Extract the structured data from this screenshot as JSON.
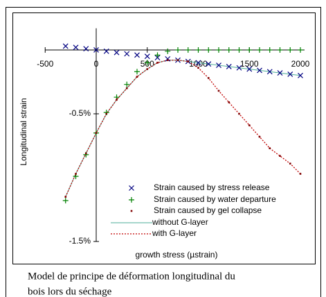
{
  "chart_data": {
    "type": "scatter",
    "xlabel": "growth stress (µstrain)",
    "ylabel": "Longitudinal strain",
    "xlim": [
      -500,
      2000
    ],
    "xticks": [
      -500,
      0,
      500,
      1000,
      1500,
      2000
    ],
    "ylim": [
      -1.5,
      0.17
    ],
    "yticks": [
      {
        "value": -0.5,
        "label": "-0.5%"
      },
      {
        "value": -1.5,
        "label": "-1.5%"
      }
    ],
    "series": [
      {
        "name": "Strain caused by stress release",
        "marker": "x",
        "color": "#000080",
        "x": [
          -300,
          -200,
          -100,
          0,
          100,
          200,
          300,
          400,
          500,
          600,
          700,
          800,
          900,
          1000,
          1100,
          1200,
          1300,
          1400,
          1500,
          1600,
          1700,
          1800,
          1900,
          2000
        ],
        "values": [
          0.03,
          0.02,
          0.01,
          0,
          -0.01,
          -0.02,
          -0.03,
          -0.04,
          -0.05,
          -0.06,
          -0.07,
          -0.08,
          -0.09,
          -0.1,
          -0.11,
          -0.12,
          -0.13,
          -0.14,
          -0.15,
          -0.16,
          -0.17,
          -0.18,
          -0.19,
          -0.2
        ]
      },
      {
        "name": "Strain caused by water departure",
        "marker": "plus",
        "color": "#008000",
        "x": [
          -300,
          -200,
          -100,
          0,
          100,
          200,
          300,
          400,
          500,
          600,
          700,
          800,
          900,
          1000,
          1100,
          1200,
          1300,
          1400,
          1500,
          1600,
          1700,
          1800,
          1900,
          2000
        ],
        "values": [
          -1.18,
          -0.99,
          -0.82,
          -0.65,
          -0.49,
          -0.37,
          -0.27,
          -0.17,
          -0.1,
          -0.04,
          -0.01,
          0,
          0,
          0,
          0,
          0,
          0,
          0,
          0,
          0,
          0,
          0,
          0,
          0
        ]
      },
      {
        "name": "Strain caused by gel collapse",
        "marker": "square",
        "color": "#800000",
        "x": [
          -300,
          -200,
          -100,
          0,
          100,
          200,
          300,
          400,
          500,
          600,
          700,
          800,
          900,
          1000,
          1100,
          1200,
          1300,
          1400,
          1500,
          1600,
          1700,
          1800,
          1900,
          2000
        ],
        "values": [
          -1.15,
          -0.97,
          -0.81,
          -0.65,
          -0.5,
          -0.39,
          -0.3,
          -0.21,
          -0.15,
          -0.1,
          -0.08,
          -0.08,
          -0.09,
          -0.14,
          -0.22,
          -0.32,
          -0.41,
          -0.5,
          -0.59,
          -0.68,
          -0.77,
          -0.83,
          -0.89,
          -0.97
        ]
      },
      {
        "name": "without G-layer",
        "marker": "line",
        "color": "#4dad9a",
        "x": [
          -300,
          -200,
          -100,
          0,
          100,
          200,
          300,
          400,
          500,
          600,
          700,
          800,
          900,
          1000,
          1100,
          1200,
          1300,
          1400,
          1500,
          1600,
          1700,
          1800,
          1900,
          2000
        ],
        "values": [
          -1.15,
          -0.97,
          -0.81,
          -0.65,
          -0.5,
          -0.39,
          -0.3,
          -0.21,
          -0.15,
          -0.1,
          -0.08,
          -0.08,
          -0.09,
          -0.1,
          -0.11,
          -0.12,
          -0.13,
          -0.14,
          -0.15,
          -0.16,
          -0.17,
          -0.18,
          -0.19,
          -0.2
        ]
      },
      {
        "name": "with G-layer",
        "marker": "dotted-line",
        "color": "#c00000",
        "x": [
          -300,
          -200,
          -100,
          0,
          100,
          200,
          300,
          400,
          500,
          600,
          700,
          800,
          900,
          1000,
          1100,
          1200,
          1300,
          1400,
          1500,
          1600,
          1700,
          1800,
          1900,
          2000
        ],
        "values": [
          -1.15,
          -0.97,
          -0.81,
          -0.65,
          -0.5,
          -0.39,
          -0.3,
          -0.21,
          -0.15,
          -0.1,
          -0.08,
          -0.08,
          -0.09,
          -0.14,
          -0.22,
          -0.32,
          -0.41,
          -0.5,
          -0.59,
          -0.68,
          -0.77,
          -0.83,
          -0.89,
          -0.97
        ]
      }
    ]
  },
  "caption": [
    "Model de principe de déformation longitudinal du",
    "bois lors du séchage"
  ]
}
